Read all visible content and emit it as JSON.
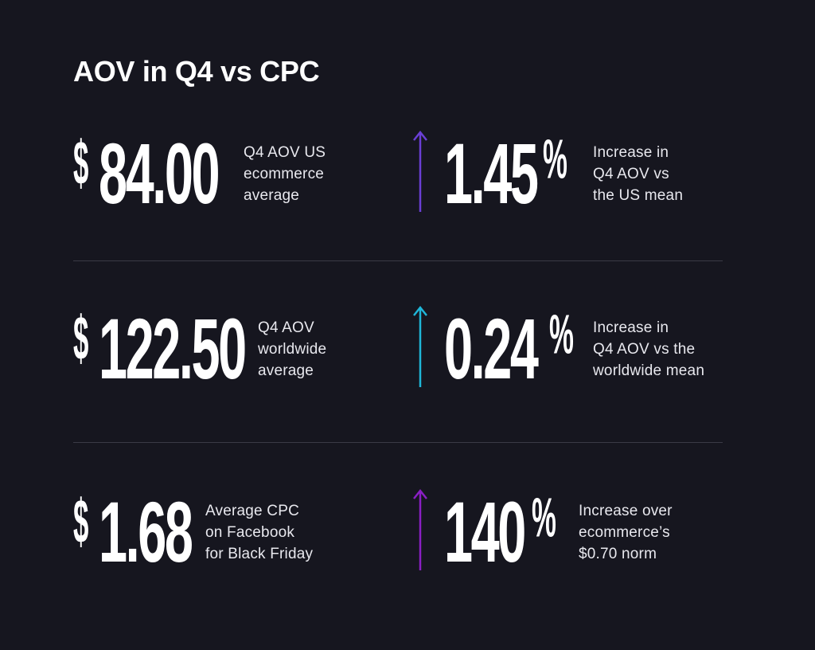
{
  "title": "AOV in Q4 vs CPC",
  "colors": {
    "background": "#16161f",
    "arrow_1": "#6a3fd6",
    "arrow_2": "#1fb6d8",
    "arrow_3": "#8a1fc4"
  },
  "rows": [
    {
      "left": {
        "symbol": "$",
        "value": "84.00",
        "label_lines": [
          "Q4 AOV US",
          "ecommerce",
          "average"
        ]
      },
      "right": {
        "arrow_icon": "arrow-up-icon",
        "value": "1.45",
        "symbol": "%",
        "label_lines": [
          "Increase in",
          "Q4 AOV vs",
          "the US mean"
        ]
      }
    },
    {
      "left": {
        "symbol": "$",
        "value": "122.50",
        "label_lines": [
          "Q4 AOV",
          "worldwide",
          "average"
        ]
      },
      "right": {
        "arrow_icon": "arrow-up-icon",
        "value": "0.24",
        "symbol": "%",
        "label_lines": [
          "Increase in",
          "Q4 AOV vs the",
          "worldwide mean"
        ]
      }
    },
    {
      "left": {
        "symbol": "$",
        "value": "1.68",
        "label_lines": [
          "Average CPC",
          "on Facebook",
          "for Black Friday"
        ]
      },
      "right": {
        "arrow_icon": "arrow-up-icon",
        "value": "140",
        "symbol": "%",
        "label_lines": [
          "Increase over",
          "ecommerce’s",
          "$0.70 norm"
        ]
      }
    }
  ]
}
